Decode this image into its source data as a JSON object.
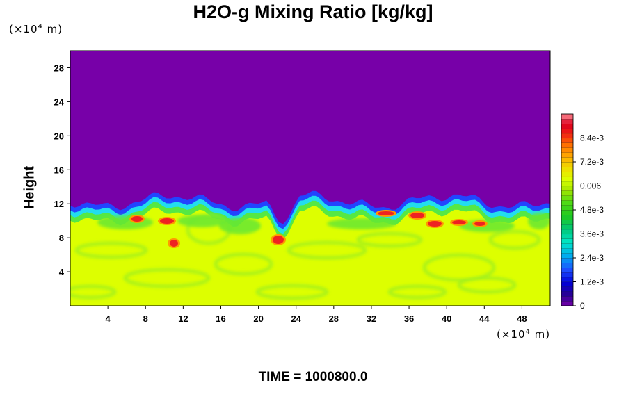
{
  "chart_data": {
    "type": "heatmap",
    "title": "H2O-g Mixing Ratio [kg/kg]",
    "ylabel": "Height",
    "xunit_prefix": "(×10",
    "xunit_exp": "4",
    "xunit_suffix": " m)",
    "yunit_prefix": "(×10",
    "yunit_exp": "4",
    "yunit_suffix": " m)",
    "xlim": [
      0,
      51
    ],
    "ylim": [
      0,
      30
    ],
    "x_ticks": [
      "4",
      "8",
      "12",
      "16",
      "20",
      "24",
      "28",
      "32",
      "36",
      "40",
      "44",
      "48"
    ],
    "x_tick_values": [
      4,
      8,
      12,
      16,
      20,
      24,
      28,
      32,
      36,
      40,
      44,
      48
    ],
    "y_ticks": [
      "4",
      "8",
      "12",
      "16",
      "20",
      "24",
      "28"
    ],
    "y_tick_values": [
      4,
      8,
      12,
      16,
      20,
      24,
      28
    ],
    "colorbar": {
      "labels": [
        "0",
        "1.2e-3",
        "2.4e-3",
        "3.6e-3",
        "4.8e-3",
        "0.006",
        "7.2e-3",
        "8.4e-3"
      ],
      "label_values": [
        0,
        0.0012,
        0.0024,
        0.0036,
        0.0048,
        0.006,
        0.0072,
        0.0084
      ],
      "min": 0,
      "max": 0.0096
    },
    "layer_top_height": 11.5,
    "lower_layer_value": 0.0055,
    "upper_layer_value": 0,
    "colors": {
      "dry": "#7700a8",
      "moist": "#ddff00",
      "mid_green": "#99ee22",
      "band_blue": "#2244ff"
    }
  },
  "footer": {
    "time_label": "TIME = 1000800.0"
  }
}
